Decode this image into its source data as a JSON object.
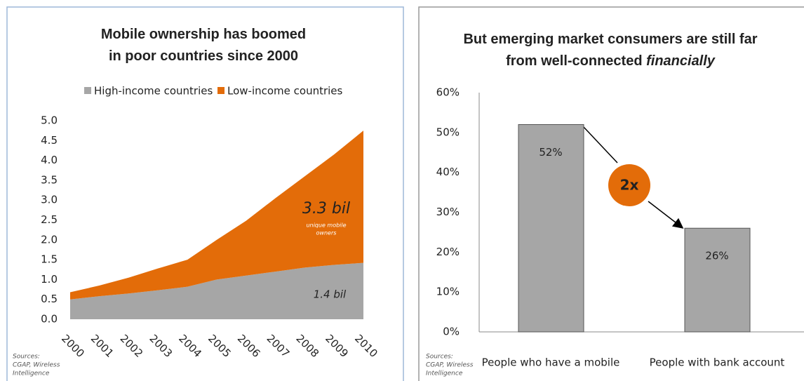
{
  "chart_data": [
    {
      "type": "area",
      "title": [
        "Mobile ownership has boomed",
        "in poor countries since 2000"
      ],
      "categories": [
        "2000",
        "2001",
        "2002",
        "2003",
        "2004",
        "2005",
        "2006",
        "2007",
        "2008",
        "2009",
        "2010"
      ],
      "series": [
        {
          "name": "High-income countries",
          "color": "#a6a6a6",
          "values": [
            0.5,
            0.58,
            0.65,
            0.73,
            0.82,
            1.0,
            1.1,
            1.2,
            1.3,
            1.37,
            1.42
          ]
        },
        {
          "name": "Low-income countries",
          "color": "#e36c09",
          "values": [
            0.18,
            0.27,
            0.4,
            0.55,
            0.68,
            1.0,
            1.38,
            1.85,
            2.3,
            2.78,
            3.33
          ]
        }
      ],
      "stacked": true,
      "ylim": [
        0,
        5
      ],
      "yticks": [
        {
          "value": 0,
          "label": "0.0"
        },
        0.5,
        {
          "value": 1,
          "label": "1.0"
        },
        1.5,
        {
          "value": 2,
          "label": "2.0"
        },
        2.5,
        {
          "value": 3,
          "label": "3.0"
        },
        3.5,
        {
          "value": 4,
          "label": "4.0"
        },
        4.5,
        {
          "value": 5,
          "label": "5.0"
        }
      ],
      "annotations": [
        "3.3 bil",
        "unique mobile",
        "owners",
        "1.4 bil"
      ],
      "sources": [
        "Sources:",
        "CGAP, Wireless",
        "Intelligence"
      ]
    },
    {
      "type": "bar",
      "title": [
        "But emerging market consumers  are still far",
        "from well-connected "
      ],
      "title_emphasis": "financially",
      "categories": [
        "People who have a mobile",
        "People with bank account"
      ],
      "values": [
        52,
        26
      ],
      "value_labels": [
        "52%",
        "26%"
      ],
      "color": "#a6a6a6",
      "ylim": [
        0,
        60
      ],
      "yticks": [
        {
          "value": 0,
          "label": "0%"
        },
        {
          "value": 10,
          "label": "10%"
        },
        {
          "value": 20,
          "label": "20%"
        },
        {
          "value": 30,
          "label": "30%"
        },
        {
          "value": 40,
          "label": "40%"
        },
        {
          "value": 50,
          "label": "50%"
        },
        {
          "value": 60,
          "label": "60%"
        }
      ],
      "annotations": [
        "2x"
      ],
      "sources": [
        "Sources:",
        "CGAP, Wireless",
        "Intelligence"
      ]
    }
  ]
}
